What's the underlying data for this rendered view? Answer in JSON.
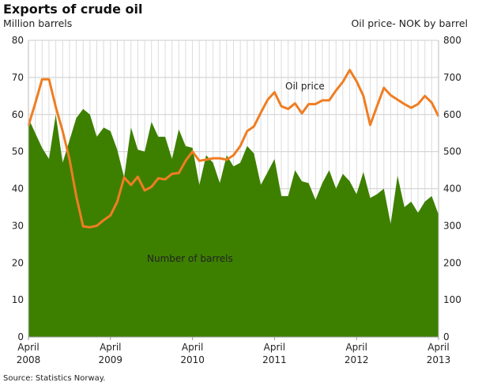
{
  "chart_data": {
    "type": "area+line",
    "title": "Exports of crude oil",
    "ylabel_left": "Million barrels",
    "ylabel_right": "Oil price- NOK by barrel",
    "ylim_left": [
      0,
      80
    ],
    "ylim_right": [
      0,
      800
    ],
    "yticks_left": [
      "0",
      "10",
      "20",
      "30",
      "40",
      "50",
      "60",
      "70",
      "80"
    ],
    "yticks_right": [
      "0",
      "100",
      "200",
      "300",
      "400",
      "500",
      "600",
      "700",
      "800"
    ],
    "xticks": [
      [
        "April",
        "2008"
      ],
      [
        "April",
        "2009"
      ],
      [
        "April",
        "2010"
      ],
      [
        "April",
        "2011"
      ],
      [
        "April",
        "2012"
      ],
      [
        "April",
        "2013"
      ]
    ],
    "x_range": [
      "2008-04",
      "2013-04"
    ],
    "grid": true,
    "series": [
      {
        "name": "Number of barrels",
        "axis": "left",
        "kind": "area",
        "color": "#3d8000",
        "values": [
          59,
          55,
          51,
          48,
          60,
          47,
          53,
          59,
          61.5,
          60,
          54,
          56.5,
          55.5,
          50.5,
          43,
          56.5,
          50.5,
          50,
          58,
          54,
          54,
          48,
          56,
          51.5,
          51,
          41,
          49,
          47,
          41.5,
          49,
          46,
          47,
          51.5,
          49.5,
          41,
          44.5,
          48,
          38,
          38,
          45,
          42,
          41.5,
          37,
          41.5,
          45,
          40,
          44,
          42,
          38.5,
          44.5,
          37.5,
          38.5,
          40,
          30.5,
          43.5,
          35,
          36.5,
          33.5,
          36.5,
          38,
          33
        ]
      },
      {
        "name": "Oil price",
        "axis": "right",
        "kind": "line",
        "color": "#ef7d22",
        "values": [
          570,
          630,
          695,
          695,
          620,
          555,
          480,
          380,
          298,
          296,
          300,
          315,
          328,
          365,
          430,
          410,
          432,
          395,
          405,
          428,
          425,
          440,
          442,
          475,
          500,
          475,
          478,
          482,
          482,
          478,
          490,
          515,
          555,
          568,
          605,
          640,
          660,
          622,
          615,
          630,
          603,
          628,
          628,
          638,
          638,
          665,
          688,
          720,
          690,
          650,
          572,
          622,
          672,
          652,
          640,
          628,
          618,
          628,
          650,
          632,
          595
        ]
      }
    ],
    "source": "Source: Statistics Norway."
  }
}
